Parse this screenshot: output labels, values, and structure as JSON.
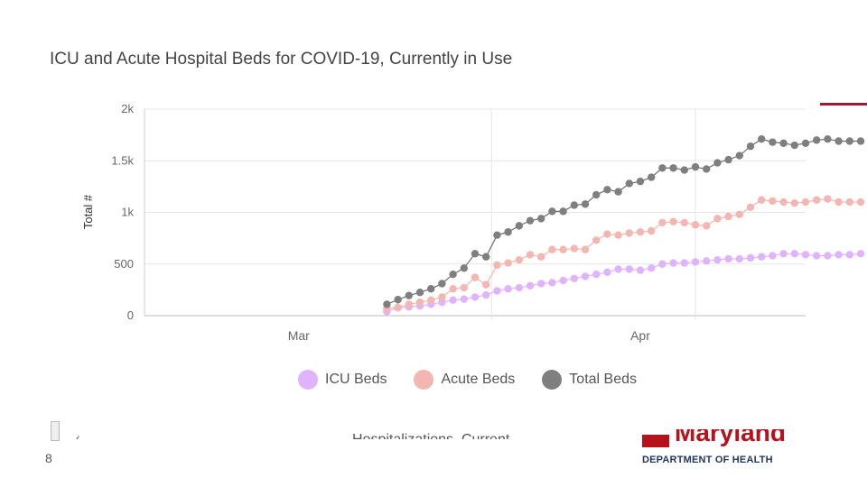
{
  "slide": {
    "page_number": "8",
    "accent_color": "#9e1b32"
  },
  "chart_data": {
    "type": "line",
    "title": "ICU and Acute Hospital Beds for COVID-19, Currently in Use",
    "xlabel": "",
    "ylabel": "Total #",
    "ylim": [
      0,
      2000
    ],
    "yticks": [
      0,
      500,
      1000,
      1500,
      2000
    ],
    "ytick_labels": [
      "0",
      "500",
      "1k",
      "1.5k",
      "2k"
    ],
    "xtick_labels": [
      "Mar",
      "Apr"
    ],
    "x_start_date": "Mar 1",
    "x_end_date": "Apr 30",
    "series": [
      {
        "name": "ICU Beds",
        "color": "#e0b3ff",
        "start_day": 23,
        "values": [
          40,
          75,
          85,
          95,
          110,
          130,
          150,
          160,
          180,
          200,
          240,
          260,
          270,
          290,
          310,
          320,
          340,
          360,
          380,
          400,
          420,
          450,
          450,
          440,
          460,
          500,
          510,
          510,
          520,
          530,
          540,
          550,
          550,
          560,
          570,
          580,
          600,
          600,
          590,
          580,
          580,
          590,
          590,
          600
        ]
      },
      {
        "name": "Acute Beds",
        "color": "#f4b6b0",
        "start_day": 23,
        "values": [
          70,
          80,
          110,
          130,
          150,
          180,
          260,
          270,
          370,
          300,
          490,
          510,
          540,
          590,
          570,
          640,
          640,
          650,
          640,
          730,
          790,
          780,
          800,
          810,
          820,
          900,
          910,
          900,
          880,
          870,
          940,
          960,
          980,
          1050,
          1120,
          1110,
          1100,
          1090,
          1100,
          1120,
          1130,
          1100,
          1100,
          1100
        ]
      },
      {
        "name": "Total Beds",
        "color": "#7f7f7f",
        "start_day": 23,
        "values": [
          110,
          155,
          195,
          225,
          260,
          310,
          400,
          460,
          600,
          570,
          780,
          810,
          870,
          920,
          940,
          1010,
          1010,
          1070,
          1080,
          1170,
          1220,
          1200,
          1280,
          1300,
          1340,
          1430,
          1430,
          1410,
          1440,
          1420,
          1480,
          1510,
          1550,
          1640,
          1710,
          1680,
          1670,
          1650,
          1670,
          1700,
          1710,
          1690,
          1690,
          1690
        ]
      }
    ],
    "legend_position": "bottom"
  },
  "legend": [
    {
      "label": "ICU Beds",
      "color": "#e0b3ff"
    },
    {
      "label": "Acute Beds",
      "color": "#f4b6b0"
    },
    {
      "label": "Total Beds",
      "color": "#7f7f7f"
    }
  ],
  "next_chart_title": "Hospitalizations, Current",
  "scroll_arrow_glyph": "‹",
  "logo": {
    "name": "Maryland",
    "department": "DEPARTMENT OF HEALTH"
  }
}
